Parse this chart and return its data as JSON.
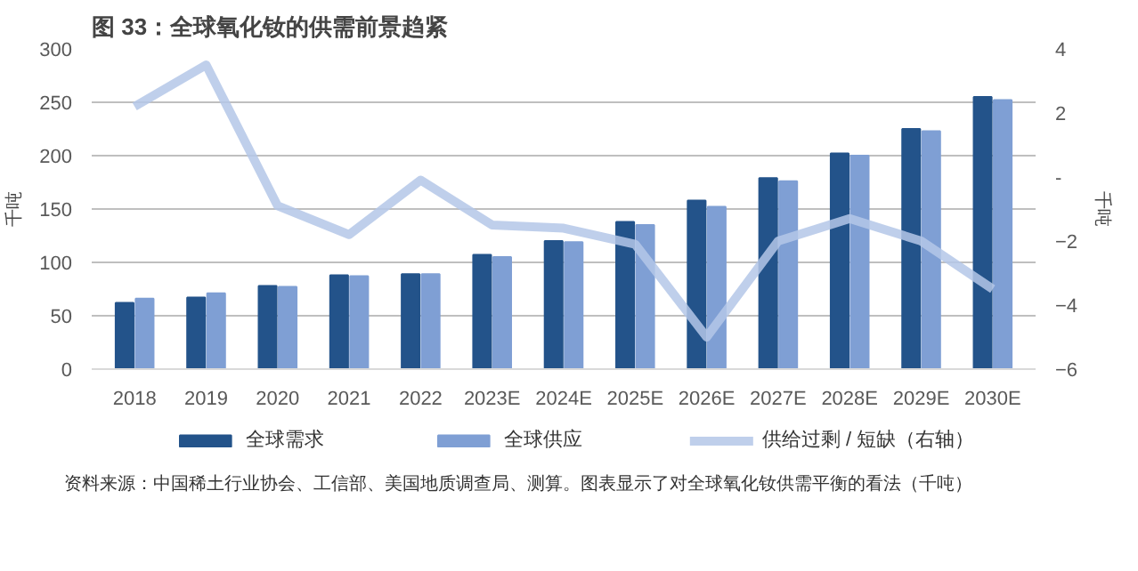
{
  "chart_data": {
    "type": "bar",
    "title": "图 33：全球氧化钕的供需前景趋紧",
    "categories": [
      "2018",
      "2019",
      "2020",
      "2021",
      "2022",
      "2023E",
      "2024E",
      "2025E",
      "2026E",
      "2027E",
      "2028E",
      "2029E",
      "2030E"
    ],
    "series": [
      {
        "name": "全球需求",
        "color": "#23538a",
        "values": [
          62,
          67,
          78,
          88,
          89,
          107,
          120,
          138,
          158,
          179,
          202,
          225,
          255
        ]
      },
      {
        "name": "全球供应",
        "color": "#7f9fd4",
        "values": [
          66,
          71,
          77,
          87,
          89,
          105,
          119,
          135,
          152,
          176,
          200,
          223,
          252
        ]
      },
      {
        "name": "供给过剩 / 短缺（右轴）",
        "type": "line",
        "axis": "y2",
        "color": "#b4c7e7",
        "values": [
          2.2,
          3.5,
          -0.9,
          -1.8,
          -0.1,
          -1.5,
          -1.6,
          -2.1,
          -5.0,
          -2.0,
          -1.3,
          -2.0,
          -3.5
        ]
      }
    ],
    "ylim": [
      0,
      300
    ],
    "yticks": [
      0,
      50,
      100,
      150,
      200,
      250,
      300
    ],
    "y2lim": [
      -6,
      4
    ],
    "y2ticks": [
      -6,
      -4,
      -2,
      {
        "value": 0,
        "label": "-"
      },
      2,
      4
    ],
    "ylabel": "千吨",
    "y2label": "千吨",
    "grid": "y",
    "legend": "bottom",
    "annotations": [
      "资料来源：中国稀土行业协会、工信部、美国地质调查局、测算。图表显示了对全球氧化钕供需平衡的看法（千吨）"
    ]
  }
}
